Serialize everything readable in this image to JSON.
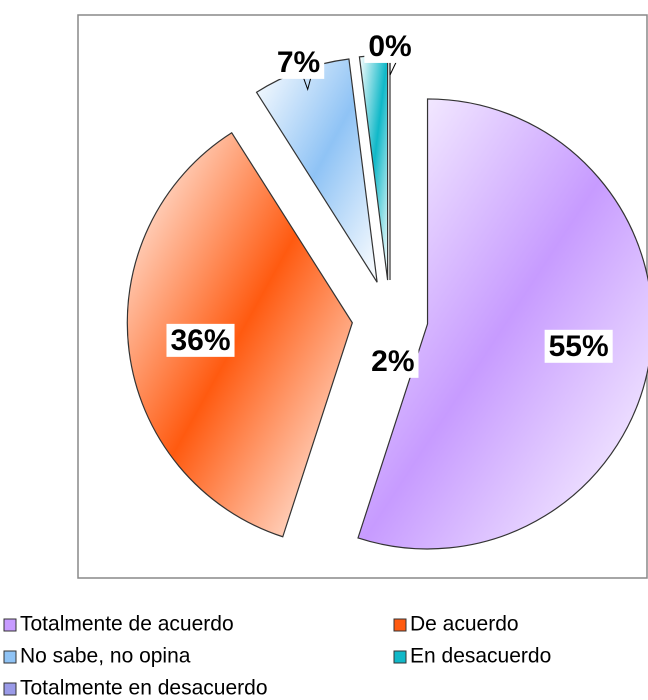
{
  "chart_data": {
    "type": "pie",
    "categories": [
      "Totalmente de acuerdo",
      "De acuerdo",
      "No sabe, no opina",
      "En desacuerdo",
      "Totalmente en desacuerdo"
    ],
    "values": [
      55,
      36,
      7,
      2,
      0
    ],
    "value_labels": [
      "55%",
      "36%",
      "7%",
      "2%",
      "0%"
    ],
    "colors": [
      "#c79bff",
      "#ff5a10",
      "#8fc3f5",
      "#10b8c8",
      "#9a9ae8"
    ],
    "exploded": true,
    "legend": "bottom"
  }
}
